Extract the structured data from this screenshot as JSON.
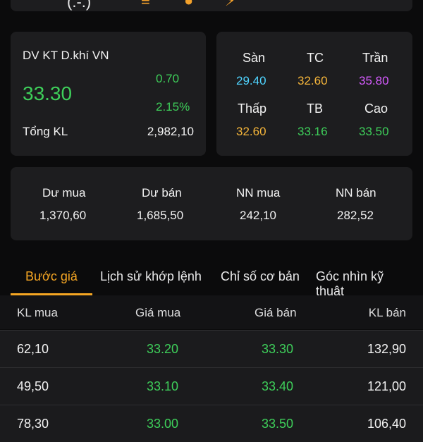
{
  "top_bar": {
    "paren_text": "(.-.)",
    "icons": [
      "menu-icon",
      "circle-icon",
      "chart-icon"
    ]
  },
  "stock": {
    "name": "DV KT D.khí VN",
    "price": "33.30",
    "change": "0.70",
    "change_pct": "2.15%",
    "volume_label": "Tổng KL",
    "volume": "2,982,10"
  },
  "ref_prices": {
    "floor_label": "Sàn",
    "floor": "29.40",
    "ref_label": "TC",
    "ref": "32.60",
    "ceil_label": "Trần",
    "ceil": "35.80",
    "low_label": "Thấp",
    "low": "32.60",
    "avg_label": "TB",
    "avg": "33.16",
    "high_label": "Cao",
    "high": "33.50"
  },
  "flow": {
    "buy_rest_label": "Dư mua",
    "buy_rest": "1,370,60",
    "sell_rest_label": "Dư bán",
    "sell_rest": "1,685,50",
    "foreign_buy_label": "NN mua",
    "foreign_buy": "242,10",
    "foreign_sell_label": "NN bán",
    "foreign_sell": "282,52"
  },
  "tabs": [
    {
      "label": "Bước giá"
    },
    {
      "label": "Lịch sử khớp lệnh"
    },
    {
      "label": "Chỉ số cơ bản"
    },
    {
      "label": "Góc nhìn kỹ thuật"
    }
  ],
  "table": {
    "headers": [
      "KL mua",
      "Giá mua",
      "Giá bán",
      "KL bán"
    ],
    "rows": [
      [
        "62,10",
        "33.20",
        "33.30",
        "132,90"
      ],
      [
        "49,50",
        "33.10",
        "33.40",
        "121,00"
      ],
      [
        "78,30",
        "33.00",
        "33.50",
        "106,40"
      ]
    ]
  },
  "colors": {
    "up": "#3ecf5a",
    "floor": "#4fd4ff",
    "ref": "#f5b53a",
    "ceil": "#d65bff",
    "accent": "#f5a623"
  }
}
